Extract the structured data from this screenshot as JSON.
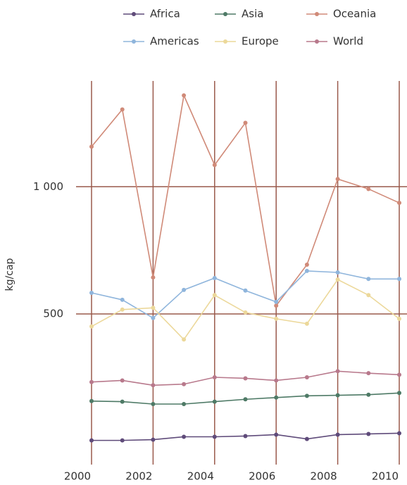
{
  "chart_data": {
    "type": "line",
    "y_label": "kg/cap",
    "x": [
      2000,
      2001,
      2002,
      2003,
      2004,
      2005,
      2006,
      2007,
      2008,
      2009,
      2010
    ],
    "xlim": [
      2000,
      2010
    ],
    "xticks": [
      2000,
      2002,
      2004,
      2006,
      2008,
      2010
    ],
    "ylim": [
      220,
      1780
    ],
    "yticks": [
      500,
      {
        "value": 1000,
        "label": "1 000"
      }
    ],
    "log_y": true,
    "grid": true,
    "legend": "top",
    "series": [
      {
        "name": "Africa",
        "color": "#5f4b7a",
        "values": [
          251,
          251,
          252,
          256,
          256,
          257,
          259,
          253,
          259,
          260,
          261
        ]
      },
      {
        "name": "Asia",
        "color": "#4e7a66",
        "values": [
          311,
          310,
          306,
          306,
          310,
          314,
          317,
          320,
          321,
          322,
          325
        ]
      },
      {
        "name": "Oceania",
        "color": "#d08a78",
        "values": [
          1244,
          1524,
          610,
          1645,
          1126,
          1417,
          523,
          654,
          1043,
          988,
          916
        ]
      },
      {
        "name": "Americas",
        "color": "#8fb5dc",
        "values": [
          561,
          540,
          489,
          570,
          608,
          568,
          534,
          632,
          627,
          605,
          605
        ]
      },
      {
        "name": "Europe",
        "color": "#ecd89a",
        "values": [
          467,
          512,
          517,
          435,
          554,
          504,
          487,
          474,
          603,
          554,
          487
        ]
      },
      {
        "name": "World",
        "color": "#b8798c",
        "values": [
          345,
          348,
          339,
          341,
          354,
          352,
          348,
          354,
          366,
          362,
          359
        ]
      }
    ]
  }
}
